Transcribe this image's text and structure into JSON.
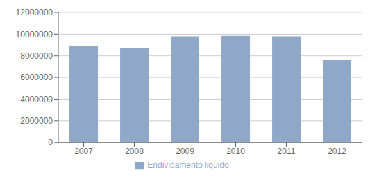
{
  "chart_data": {
    "type": "bar",
    "categories": [
      "2007",
      "2008",
      "2009",
      "2010",
      "2011",
      "2012"
    ],
    "series": [
      {
        "name": "Endividamento liquido",
        "color": "#8FA8C8",
        "values": [
          8900000,
          8750000,
          9800000,
          9850000,
          9800000,
          7600000
        ]
      }
    ],
    "ylim": [
      0,
      12000000
    ],
    "yticks": [
      0,
      2000000,
      4000000,
      6000000,
      8000000,
      10000000,
      12000000
    ],
    "grid": true,
    "legend": "bottom"
  }
}
